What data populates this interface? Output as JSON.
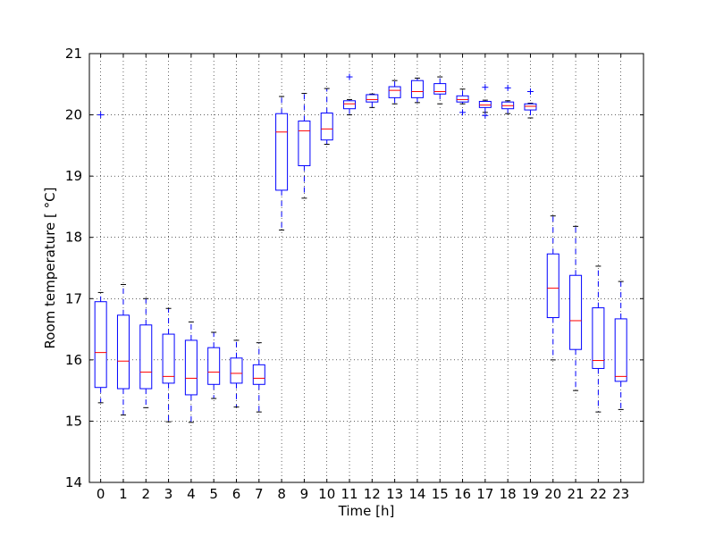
{
  "chart_data": {
    "type": "boxplot",
    "title": "",
    "xlabel": "Time [h]",
    "ylabel": "Room temperature [$^\\circ$C]",
    "ylabel_display": "Room temperature [ °C]",
    "ylim": [
      14,
      21
    ],
    "yticks": [
      "14",
      "15",
      "16",
      "17",
      "18",
      "19",
      "20",
      "21"
    ],
    "grid": true,
    "categories": [
      "0",
      "1",
      "2",
      "3",
      "4",
      "5",
      "6",
      "7",
      "8",
      "9",
      "10",
      "11",
      "12",
      "13",
      "14",
      "15",
      "16",
      "17",
      "18",
      "19",
      "20",
      "21",
      "22",
      "23"
    ],
    "boxes": [
      {
        "x": "0",
        "whislo": 15.3,
        "q1": 15.55,
        "med": 16.12,
        "q3": 16.95,
        "whishi": 17.1,
        "fliers": [
          20.0
        ]
      },
      {
        "x": "1",
        "whislo": 15.1,
        "q1": 15.53,
        "med": 15.98,
        "q3": 16.73,
        "whishi": 17.23,
        "fliers": []
      },
      {
        "x": "2",
        "whislo": 15.22,
        "q1": 15.53,
        "med": 15.8,
        "q3": 16.57,
        "whishi": 17.0,
        "fliers": []
      },
      {
        "x": "3",
        "whislo": 14.99,
        "q1": 15.62,
        "med": 15.73,
        "q3": 16.42,
        "whishi": 16.84,
        "fliers": []
      },
      {
        "x": "4",
        "whislo": 14.98,
        "q1": 15.43,
        "med": 15.7,
        "q3": 16.32,
        "whishi": 16.62,
        "fliers": []
      },
      {
        "x": "5",
        "whislo": 15.37,
        "q1": 15.6,
        "med": 15.8,
        "q3": 16.2,
        "whishi": 16.45,
        "fliers": []
      },
      {
        "x": "6",
        "whislo": 15.23,
        "q1": 15.62,
        "med": 15.78,
        "q3": 16.03,
        "whishi": 16.32,
        "fliers": []
      },
      {
        "x": "7",
        "whislo": 15.15,
        "q1": 15.6,
        "med": 15.7,
        "q3": 15.92,
        "whishi": 16.28,
        "fliers": []
      },
      {
        "x": "8",
        "whislo": 18.12,
        "q1": 18.77,
        "med": 19.72,
        "q3": 20.02,
        "whishi": 20.3,
        "fliers": []
      },
      {
        "x": "9",
        "whislo": 18.64,
        "q1": 19.17,
        "med": 19.74,
        "q3": 19.9,
        "whishi": 20.35,
        "fliers": []
      },
      {
        "x": "10",
        "whislo": 19.52,
        "q1": 19.59,
        "med": 19.77,
        "q3": 20.03,
        "whishi": 20.43,
        "fliers": []
      },
      {
        "x": "11",
        "whislo": 20.0,
        "q1": 20.1,
        "med": 20.18,
        "q3": 20.23,
        "whishi": 20.25,
        "fliers": [
          20.62
        ]
      },
      {
        "x": "12",
        "whislo": 20.12,
        "q1": 20.21,
        "med": 20.25,
        "q3": 20.33,
        "whishi": 20.34,
        "fliers": []
      },
      {
        "x": "13",
        "whislo": 20.18,
        "q1": 20.28,
        "med": 20.4,
        "q3": 20.46,
        "whishi": 20.56,
        "fliers": []
      },
      {
        "x": "14",
        "whislo": 20.2,
        "q1": 20.28,
        "med": 20.38,
        "q3": 20.56,
        "whishi": 20.6,
        "fliers": []
      },
      {
        "x": "15",
        "whislo": 20.18,
        "q1": 20.34,
        "med": 20.38,
        "q3": 20.51,
        "whishi": 20.62,
        "fliers": []
      },
      {
        "x": "16",
        "whislo": 20.18,
        "q1": 20.21,
        "med": 20.25,
        "q3": 20.31,
        "whishi": 20.42,
        "fliers": [
          20.04
        ]
      },
      {
        "x": "17",
        "whislo": 20.04,
        "q1": 20.12,
        "med": 20.16,
        "q3": 20.22,
        "whishi": 20.24,
        "fliers": [
          20.45,
          19.99
        ]
      },
      {
        "x": "18",
        "whislo": 20.02,
        "q1": 20.1,
        "med": 20.15,
        "q3": 20.21,
        "whishi": 20.23,
        "fliers": [
          20.44
        ]
      },
      {
        "x": "19",
        "whislo": 19.95,
        "q1": 20.08,
        "med": 20.14,
        "q3": 20.18,
        "whishi": 20.19,
        "fliers": [
          20.38
        ]
      },
      {
        "x": "20",
        "whislo": 16.0,
        "q1": 16.69,
        "med": 17.17,
        "q3": 17.73,
        "whishi": 18.35,
        "fliers": []
      },
      {
        "x": "21",
        "whislo": 15.5,
        "q1": 16.17,
        "med": 16.64,
        "q3": 17.38,
        "whishi": 18.18,
        "fliers": []
      },
      {
        "x": "22",
        "whislo": 15.15,
        "q1": 15.86,
        "med": 15.99,
        "q3": 16.85,
        "whishi": 17.53,
        "fliers": []
      },
      {
        "x": "23",
        "whislo": 15.19,
        "q1": 15.65,
        "med": 15.73,
        "q3": 16.67,
        "whishi": 17.28,
        "fliers": []
      }
    ],
    "colors": {
      "box": "#0000ff",
      "median": "#ff0000",
      "whisker": "#0000ff",
      "cap": "#000000",
      "flier": "#0000ff",
      "grid": "#000000",
      "frame": "#000000"
    }
  }
}
